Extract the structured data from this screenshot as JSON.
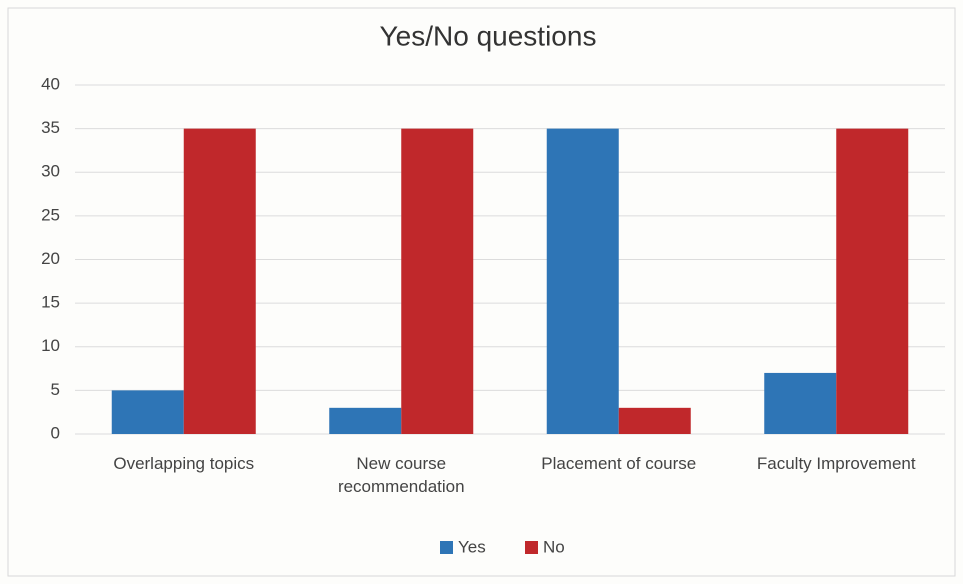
{
  "chart_data": {
    "type": "bar",
    "title": "Yes/No questions",
    "categories": [
      "Overlapping topics",
      "New course recommendation",
      "Placement of course",
      "Faculty Improvement"
    ],
    "series": [
      {
        "name": "Yes",
        "color": "#2e75b6",
        "values": [
          5,
          3,
          35,
          7
        ]
      },
      {
        "name": "No",
        "color": "#c0282b",
        "values": [
          35,
          35,
          3,
          35
        ]
      }
    ],
    "ylim": [
      0,
      40
    ],
    "yticks": [
      0,
      5,
      10,
      15,
      20,
      25,
      30,
      35,
      40
    ],
    "grid": true,
    "legend": "bottom"
  }
}
